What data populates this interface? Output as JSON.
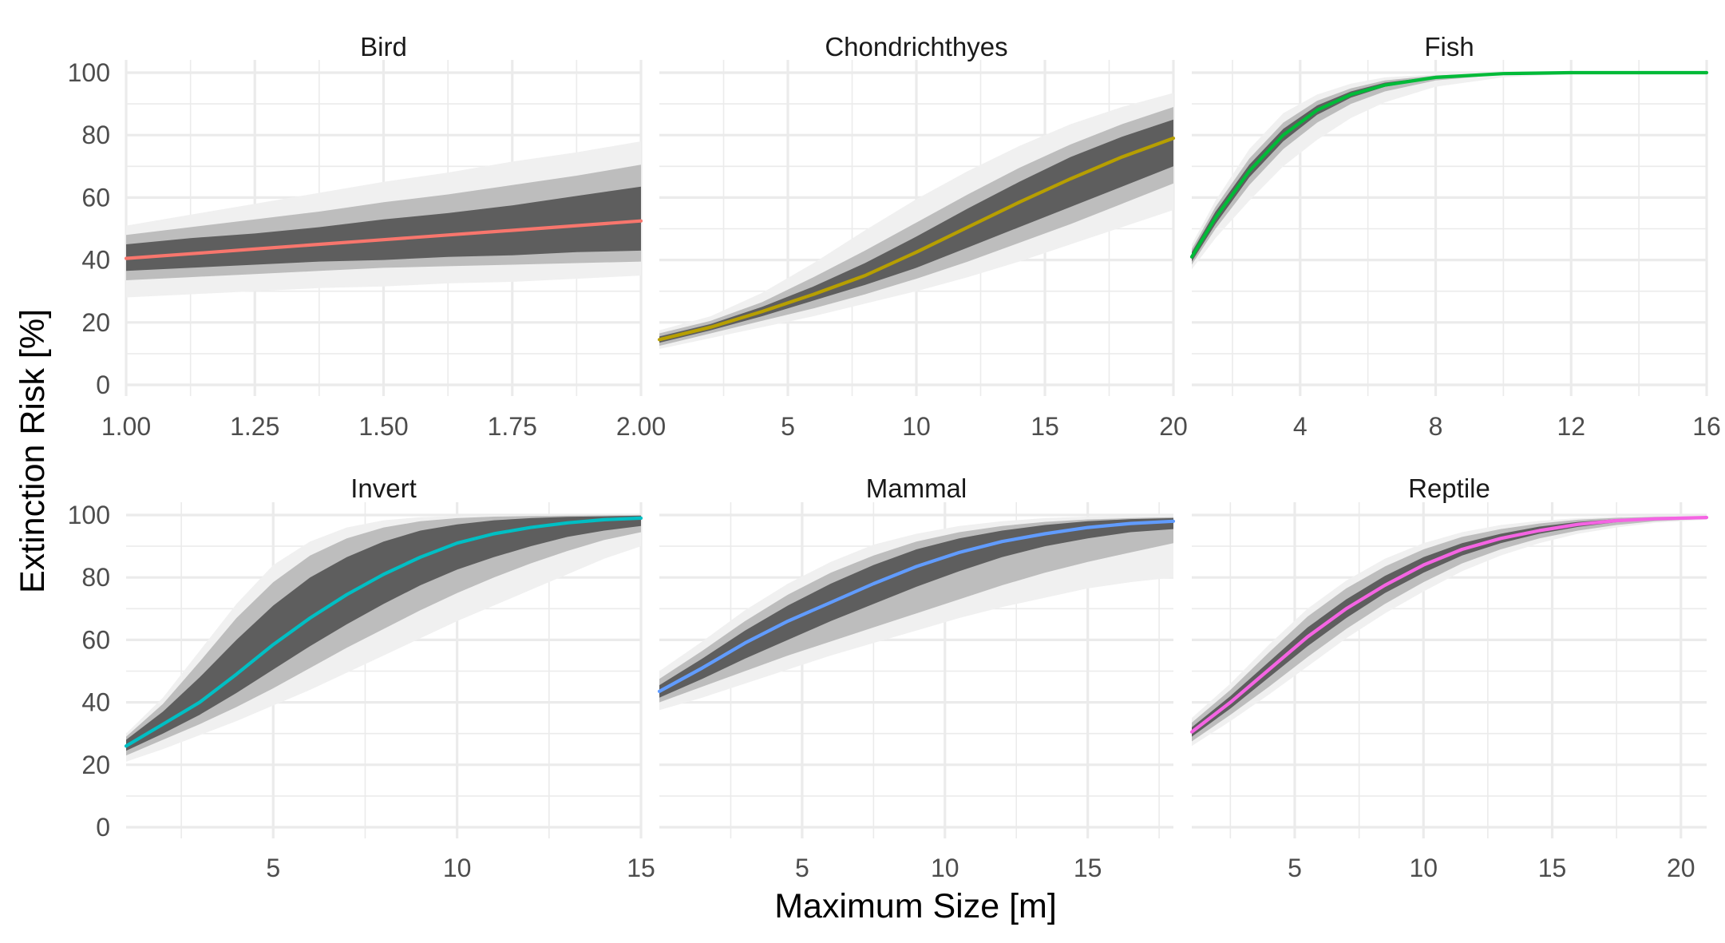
{
  "chart_data": {
    "type": "line",
    "xlabel": "Maximum Size [m]",
    "ylabel": "Extinction Risk [%]",
    "ylim": [
      0,
      100
    ],
    "yticks": [
      0,
      20,
      40,
      60,
      80,
      100
    ],
    "grid": true,
    "legend": "none",
    "bands": [
      {
        "level": "outer",
        "color": "#f0f0f0"
      },
      {
        "level": "middle",
        "color": "#bdbdbd"
      },
      {
        "level": "inner",
        "color": "#5e5e5e"
      }
    ],
    "panels": [
      {
        "title": "Bird",
        "color": "#F8766D",
        "xlim": [
          1.0,
          2.0
        ],
        "xticks": [
          1.0,
          1.25,
          1.5,
          1.75,
          2.0
        ],
        "xtick_labels": [
          "1.00",
          "1.25",
          "1.50",
          "1.75",
          "2.00"
        ],
        "x": [
          1.0,
          1.125,
          1.25,
          1.375,
          1.5,
          1.625,
          1.75,
          1.875,
          2.0
        ],
        "y": [
          40.5,
          42,
          43.5,
          45,
          46.5,
          48,
          49.5,
          51,
          52.5
        ],
        "inner_lo": [
          36.5,
          37.5,
          38.5,
          39.5,
          40,
          41,
          41.5,
          42.5,
          43
        ],
        "inner_hi": [
          45,
          47,
          48.5,
          50.5,
          53,
          55,
          57.5,
          60.5,
          63.5
        ],
        "mid_lo": [
          33.5,
          34.5,
          35.5,
          36.5,
          37.5,
          38,
          38.5,
          39,
          39.5
        ],
        "mid_hi": [
          48,
          50.5,
          53,
          55.5,
          58.5,
          61,
          64,
          67,
          70.5
        ],
        "out_lo": [
          28,
          29,
          30,
          31,
          31.5,
          32.5,
          33,
          34,
          35
        ],
        "out_hi": [
          51,
          54.5,
          58,
          61.5,
          65,
          68,
          71.5,
          74.5,
          78
        ]
      },
      {
        "title": "Chondrichthyes",
        "color": "#B79F00",
        "xlim": [
          0,
          20
        ],
        "xticks": [
          5,
          10,
          15,
          20
        ],
        "xtick_labels": [
          "5",
          "10",
          "15",
          "20"
        ],
        "x": [
          0,
          2,
          4,
          6,
          8,
          10,
          12,
          14,
          16,
          18,
          20
        ],
        "y": [
          14.5,
          18.5,
          23.5,
          29,
          35,
          42.5,
          50.5,
          58.5,
          66,
          73,
          79
        ],
        "inner_lo": [
          13.5,
          17.5,
          22,
          27,
          32,
          37.5,
          44,
          50.5,
          57,
          63.5,
          70
        ],
        "inner_hi": [
          15.5,
          19.5,
          25,
          31.5,
          39,
          47.5,
          56.5,
          65,
          73,
          79.5,
          85
        ],
        "mid_lo": [
          12.5,
          16.5,
          20.5,
          24.5,
          29,
          34,
          39.5,
          45.5,
          51.5,
          58,
          64.5
        ],
        "mid_hi": [
          16.5,
          20.5,
          26.5,
          34.5,
          43,
          52,
          61,
          69.5,
          77,
          83.5,
          89
        ],
        "out_lo": [
          11.5,
          15,
          18.5,
          22,
          26,
          30,
          34.5,
          39.5,
          45,
          50.5,
          56
        ],
        "out_hi": [
          17.5,
          22,
          29.5,
          39,
          49.5,
          59.5,
          68.5,
          76.5,
          83.5,
          89,
          93.5
        ]
      },
      {
        "title": "Fish",
        "color": "#00BA38",
        "xlim": [
          0.8,
          16
        ],
        "xticks": [
          4,
          8,
          12,
          16
        ],
        "xtick_labels": [
          "4",
          "8",
          "12",
          "16"
        ],
        "x": [
          0.8,
          1.5,
          2.5,
          3.5,
          4.5,
          5.5,
          6.5,
          8,
          10,
          12,
          14,
          16
        ],
        "y": [
          41,
          53.5,
          68.5,
          80,
          88,
          93,
          96,
          98.5,
          99.7,
          100,
          100,
          100
        ],
        "inner_lo": [
          39.5,
          51.5,
          66.5,
          78,
          86.5,
          92,
          95.5,
          98.3,
          99.6,
          100,
          100,
          100
        ],
        "inner_hi": [
          42.5,
          55.5,
          70.5,
          82,
          89.5,
          94,
          96.8,
          98.8,
          99.8,
          100,
          100,
          100
        ],
        "mid_lo": [
          38.5,
          50,
          64,
          75.5,
          84,
          90,
          94,
          97.5,
          99.4,
          99.9,
          100,
          100
        ],
        "mid_hi": [
          43.5,
          57,
          72.5,
          84,
          91,
          95,
          97.5,
          99.1,
          99.9,
          100,
          100,
          100
        ],
        "out_lo": [
          37,
          47,
          59,
          70,
          78.5,
          85.5,
          90.5,
          95.5,
          98.5,
          99.6,
          99.9,
          100
        ],
        "out_hi": [
          45,
          59,
          75.5,
          87,
          93,
          96.5,
          98.5,
          99.5,
          100,
          100,
          100,
          100
        ]
      },
      {
        "title": "Invert",
        "color": "#00BFC4",
        "xlim": [
          1,
          15
        ],
        "xticks": [
          5,
          10,
          15
        ],
        "xtick_labels": [
          "5",
          "10",
          "15"
        ],
        "x": [
          1,
          2,
          3,
          4,
          5,
          6,
          7,
          8,
          9,
          10,
          11,
          12,
          13,
          14,
          15
        ],
        "y": [
          26,
          33,
          40,
          49,
          58.5,
          67,
          74.5,
          81,
          86.5,
          91,
          94,
          96,
          97.5,
          98.5,
          99
        ],
        "inner_lo": [
          24.5,
          30,
          36,
          43,
          50.5,
          58,
          65,
          71.5,
          77.5,
          82.5,
          86.5,
          90,
          93,
          95,
          96.5
        ],
        "inner_hi": [
          28,
          37,
          48,
          60,
          71,
          80,
          86.5,
          91.5,
          95,
          97,
          98.3,
          99,
          99.4,
          99.6,
          99.8
        ],
        "mid_lo": [
          23,
          28,
          33,
          38.5,
          44.5,
          51,
          57.5,
          63.5,
          69.5,
          75,
          80,
          84.5,
          88.5,
          92,
          94.5
        ],
        "mid_hi": [
          29,
          39.5,
          53,
          67,
          78.5,
          87,
          92.5,
          96,
          98,
          99,
          99.5,
          99.7,
          99.8,
          99.9,
          99.9
        ],
        "out_lo": [
          21,
          25,
          29.5,
          34,
          39,
          44,
          49.5,
          55,
          60.5,
          66,
          71,
          76,
          81,
          86,
          90
        ],
        "out_hi": [
          30,
          41.5,
          56.5,
          71.5,
          84,
          91.5,
          96,
          98.3,
          99.3,
          99.7,
          99.9,
          99.9,
          100,
          100,
          100
        ]
      },
      {
        "title": "Mammal",
        "color": "#619CFF",
        "xlim": [
          0,
          18
        ],
        "xticks": [
          5,
          10,
          15
        ],
        "xtick_labels": [
          "5",
          "10",
          "15"
        ],
        "x": [
          0,
          1.5,
          3,
          4.5,
          6,
          7.5,
          9,
          10.5,
          12,
          13.5,
          15,
          16.5,
          18
        ],
        "y": [
          43.5,
          51,
          59,
          66,
          72,
          78,
          83.5,
          88,
          91.5,
          94,
          96,
          97.3,
          98
        ],
        "inner_lo": [
          41.5,
          47.5,
          54,
          60,
          66,
          71.5,
          77,
          82,
          86.5,
          90,
          92.5,
          94.5,
          95.5
        ],
        "inner_hi": [
          45.5,
          54,
          63,
          71,
          78,
          84,
          89,
          92.5,
          95,
          96.8,
          98,
          98.7,
          99
        ],
        "mid_lo": [
          40,
          45,
          50,
          55,
          59.5,
          64,
          68.5,
          73,
          77.5,
          81.5,
          85,
          88,
          91
        ],
        "mid_hi": [
          47.5,
          56.5,
          66,
          74.5,
          81.5,
          87,
          91.5,
          94.5,
          96.5,
          97.8,
          98.6,
          99,
          99.3
        ],
        "out_lo": [
          37.5,
          41.5,
          46,
          50.5,
          55,
          59,
          63,
          67,
          70.5,
          73.5,
          76.5,
          78.5,
          80
        ],
        "out_hi": [
          50,
          59.5,
          69.5,
          78,
          85,
          90.5,
          94,
          96.5,
          98,
          99,
          99.5,
          99.7,
          99.8
        ]
      },
      {
        "title": "Reptile",
        "color": "#F564E3",
        "xlim": [
          1,
          21
        ],
        "xticks": [
          5,
          10,
          15,
          20
        ],
        "xtick_labels": [
          "5",
          "10",
          "15",
          "20"
        ],
        "x": [
          1,
          2.5,
          4,
          5.5,
          7,
          8.5,
          10,
          11.5,
          13,
          14.5,
          16,
          17.5,
          19,
          21
        ],
        "y": [
          30.5,
          40,
          50.5,
          61,
          70,
          77.5,
          84,
          89,
          92.5,
          95,
          97,
          98.2,
          98.8,
          99.2
        ],
        "inner_lo": [
          29,
          38,
          48,
          58,
          67,
          75,
          81.5,
          87,
          91,
          94,
          96.2,
          97.7,
          98.5,
          99
        ],
        "inner_hi": [
          32,
          42,
          53,
          64,
          73,
          80.5,
          86.5,
          91,
          94,
          96.3,
          97.8,
          98.7,
          99.1,
          99.4
        ],
        "mid_lo": [
          27.5,
          36,
          45,
          54.5,
          63.5,
          71.5,
          78.5,
          84.5,
          89,
          92.5,
          95,
          96.8,
          98,
          98.8
        ],
        "mid_hi": [
          33.5,
          44,
          56,
          67.5,
          76.5,
          83.5,
          89,
          93,
          95.5,
          97.3,
          98.5,
          99.1,
          99.4,
          99.6
        ],
        "out_lo": [
          26,
          34,
          42.5,
          51.5,
          60.5,
          68.5,
          75.5,
          82,
          87,
          91,
          94,
          96,
          97.5,
          98.5
        ],
        "out_hi": [
          35,
          46,
          58.5,
          70,
          79,
          86,
          91,
          94.5,
          96.8,
          98.1,
          99,
          99.4,
          99.6,
          99.7
        ]
      }
    ]
  }
}
